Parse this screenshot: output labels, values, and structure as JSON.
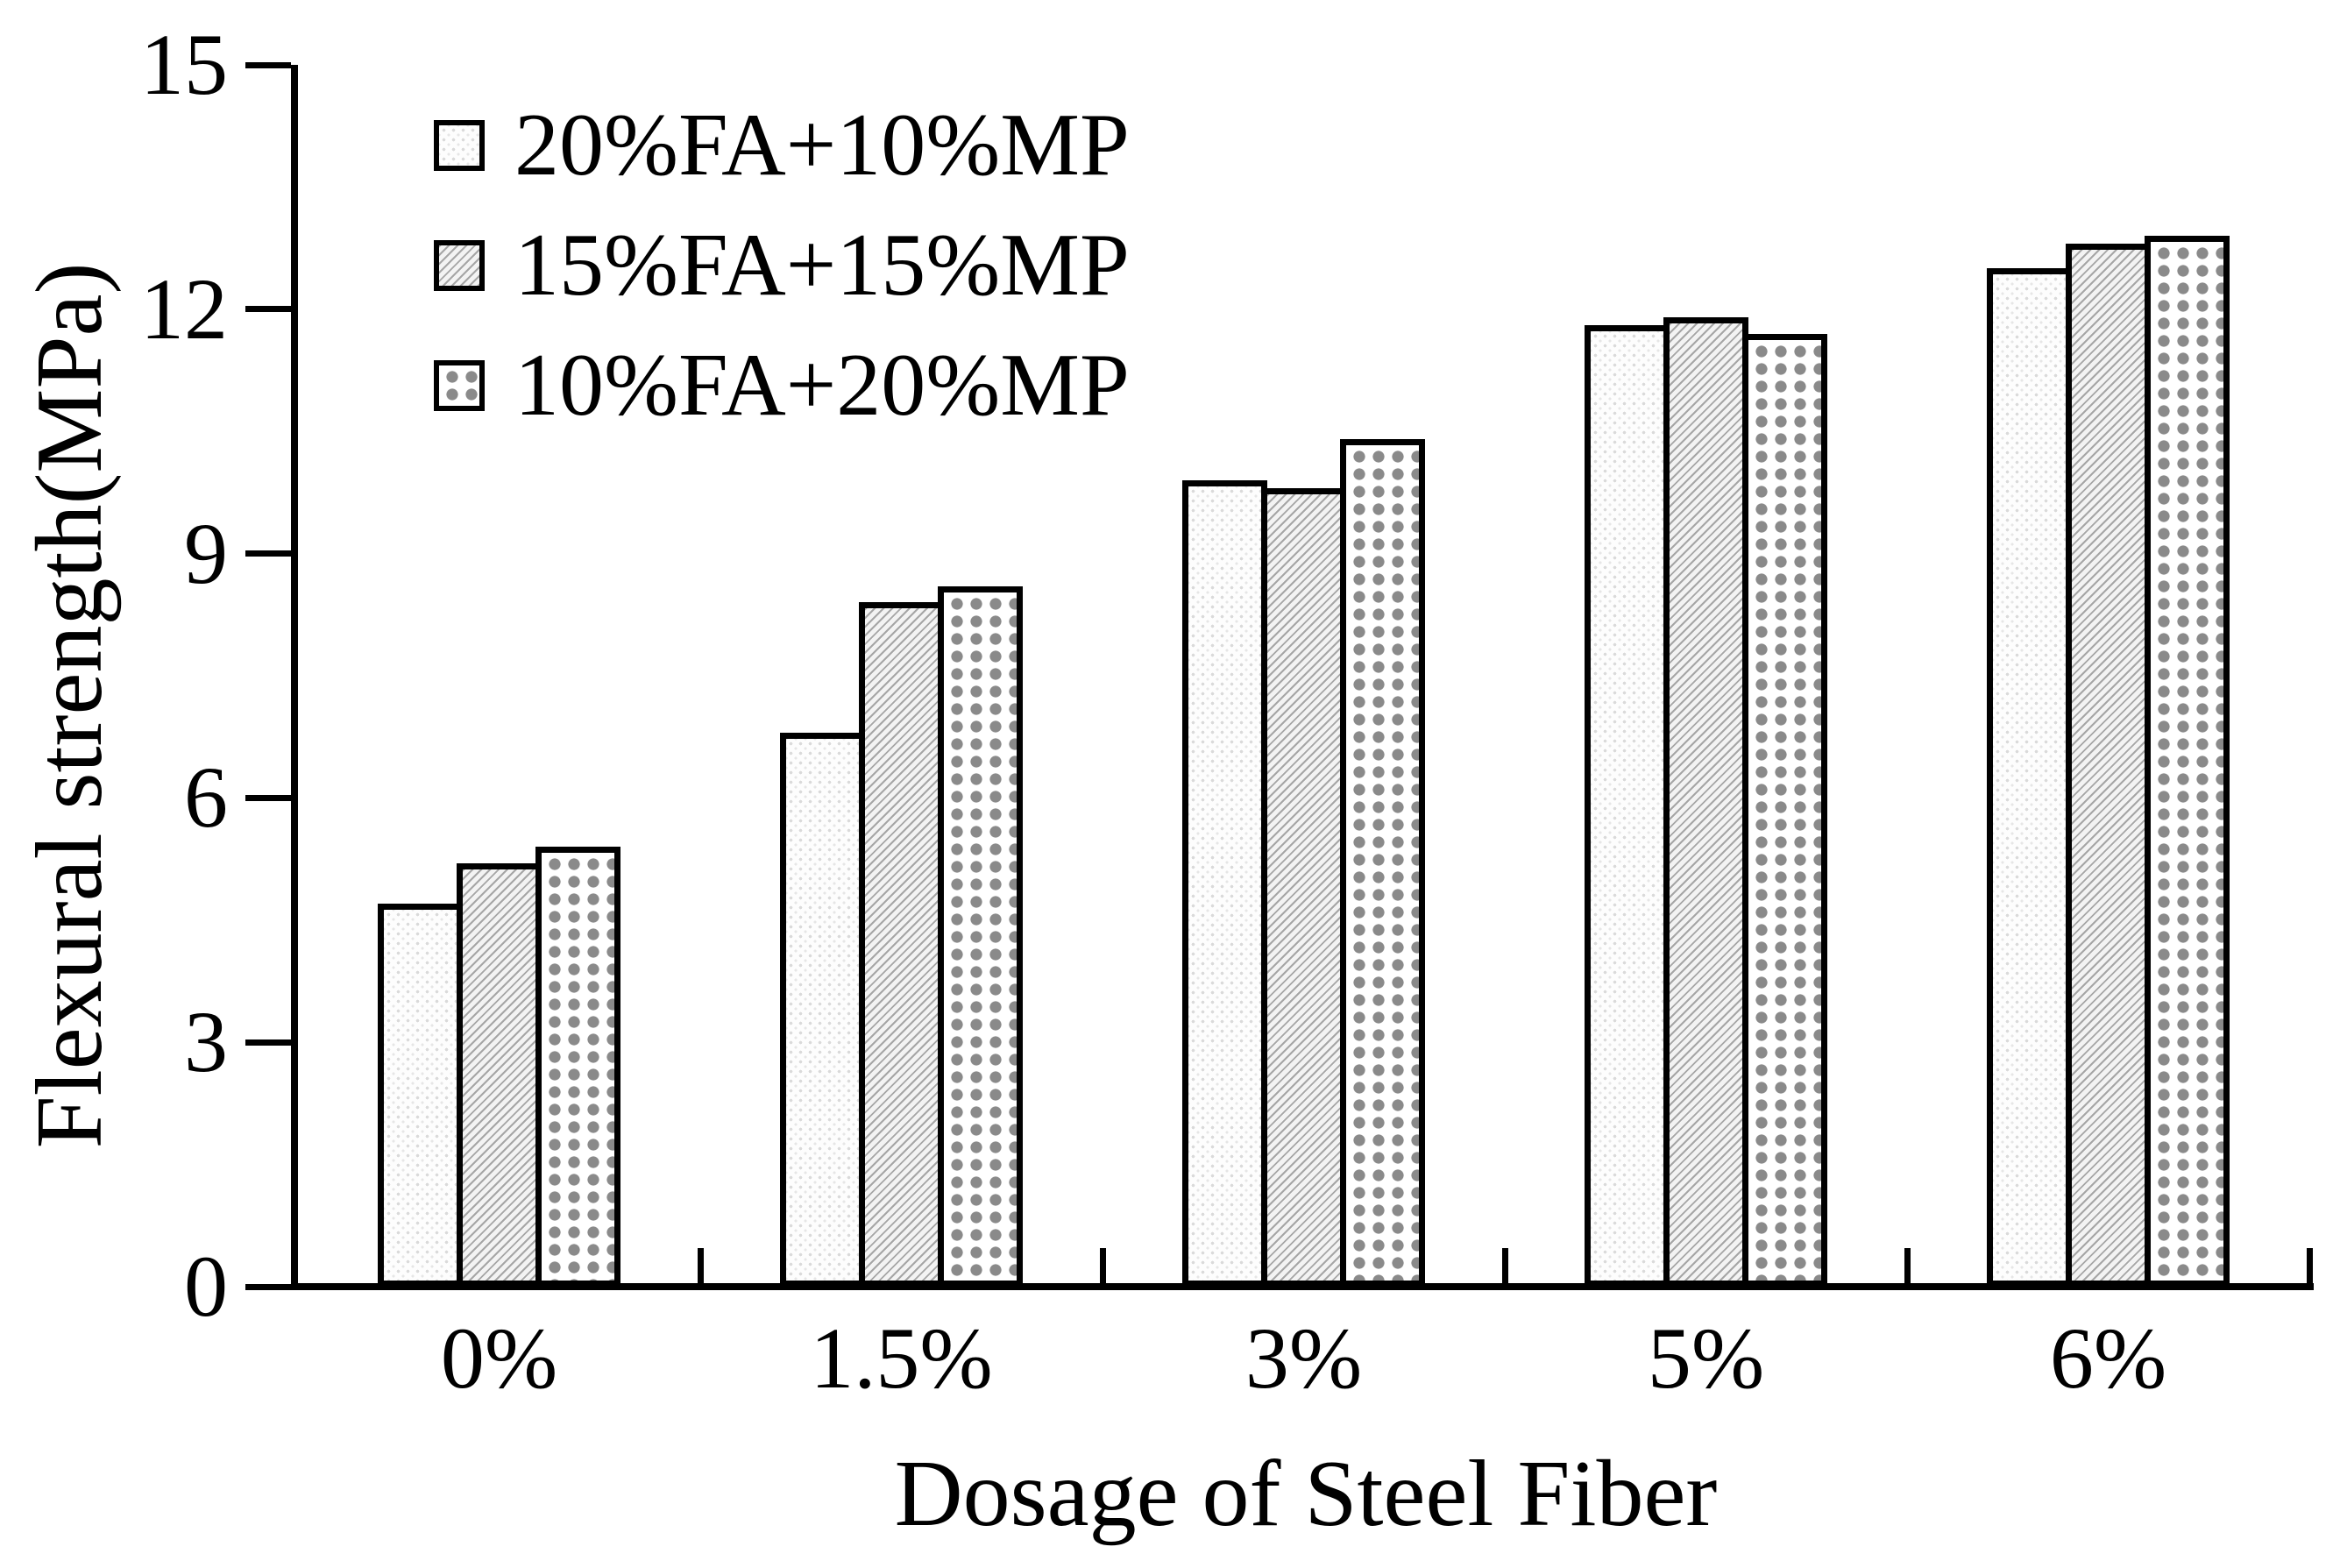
{
  "chart_data": {
    "type": "bar",
    "title": "",
    "xlabel": "Dosage of Steel Fiber",
    "ylabel": "Flexural strength(MPa)",
    "categories": [
      "0%",
      "1.5%",
      "3%",
      "5%",
      "6%"
    ],
    "series": [
      {
        "name": "20%FA+10%MP",
        "values": [
          4.7,
          6.8,
          9.9,
          11.8,
          12.5
        ]
      },
      {
        "name": "15%FA+15%MP",
        "values": [
          5.2,
          8.4,
          9.8,
          11.9,
          12.8
        ]
      },
      {
        "name": "10%FA+20%MP",
        "values": [
          5.4,
          8.6,
          10.4,
          11.7,
          12.9
        ]
      }
    ],
    "ylim": [
      0,
      15
    ],
    "yticks": [
      0,
      3,
      6,
      9,
      12,
      15
    ],
    "grid": false,
    "legend_position": "top-left-inside",
    "patterns": [
      "light-dots",
      "diagonal-hatch",
      "gray-dot-grid"
    ],
    "colors": {
      "stroke": "#000000",
      "background": "#ffffff",
      "hatch_gray": "#a6a6a6",
      "dot_gray": "#8a8a8a"
    }
  }
}
